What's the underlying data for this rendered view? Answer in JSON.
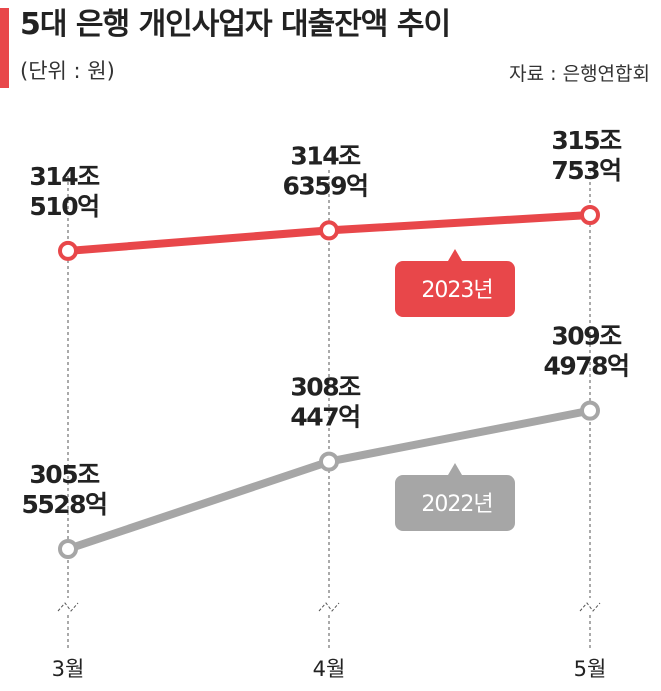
{
  "chart_data": {
    "type": "line",
    "title": "5대 은행 개인사업자 대출잔액 추이",
    "subtitle": "(단위 : 원)",
    "source": "자료 : 은행연합회",
    "categories": [
      "3월",
      "4월",
      "5월"
    ],
    "series": [
      {
        "name": "2023년",
        "color": "#e8474a",
        "values": [
          314051000000000,
          314635900000000,
          315075300000000
        ],
        "value_labels": [
          "314조 510억",
          "314조 6359억",
          "315조 753억"
        ]
      },
      {
        "name": "2022년",
        "color": "#a6a6a6",
        "values": [
          305552800000000,
          308044700000000,
          309497800000000
        ],
        "value_labels": [
          "305조 5528억",
          "308조 447억",
          "309조 4978억"
        ]
      }
    ]
  }
}
